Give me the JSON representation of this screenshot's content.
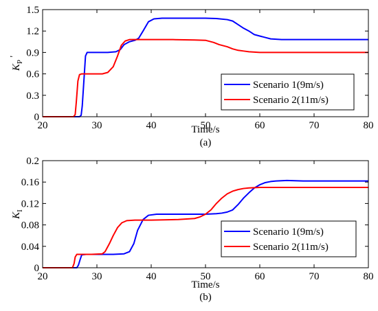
{
  "chart_data": [
    {
      "type": "line",
      "xlabel": "Time/s",
      "ylabel": "K_P'",
      "ylabel_main": "K",
      "ylabel_sub": "P",
      "ylabel_prime": "'",
      "caption": "(a)",
      "xlim": [
        20,
        80
      ],
      "ylim": [
        0,
        1.5
      ],
      "xticks": [
        "20",
        "30",
        "40",
        "50",
        "60",
        "70",
        "80"
      ],
      "yticks": [
        "0",
        "0.3",
        "0.6",
        "0.9",
        "1.2",
        "1.5"
      ],
      "grid": false,
      "legend_position": "lower-right",
      "series": [
        {
          "name": "Scenario 1(9m/s)",
          "color": "#0000ff",
          "x": [
            20,
            26.8,
            27.1,
            27.3,
            27.6,
            27.9,
            28.2,
            30,
            32,
            33.5,
            34.3,
            35,
            36,
            37,
            37.7,
            38.5,
            39.5,
            40.5,
            42,
            45,
            48,
            50,
            52,
            54,
            55,
            56,
            57,
            58,
            59,
            60,
            61,
            62,
            64,
            66,
            68,
            70,
            75,
            80
          ],
          "y": [
            0,
            0,
            0.02,
            0.15,
            0.5,
            0.85,
            0.9,
            0.9,
            0.9,
            0.91,
            0.94,
            1.01,
            1.05,
            1.07,
            1.1,
            1.2,
            1.33,
            1.37,
            1.38,
            1.38,
            1.38,
            1.38,
            1.375,
            1.36,
            1.34,
            1.29,
            1.24,
            1.2,
            1.15,
            1.13,
            1.11,
            1.09,
            1.08,
            1.08,
            1.08,
            1.08,
            1.08,
            1.08
          ]
        },
        {
          "name": "Scenario 2(11m/s)",
          "color": "#ff0000",
          "x": [
            20,
            25.7,
            26.0,
            26.2,
            26.5,
            26.8,
            27.2,
            29,
            31,
            32,
            33,
            33.8,
            34.5,
            35.2,
            36,
            38,
            40,
            44,
            48,
            50,
            51.5,
            52.5,
            54,
            55,
            56,
            57,
            58,
            59,
            60,
            62,
            65,
            70,
            80
          ],
          "y": [
            0,
            0,
            0.03,
            0.2,
            0.5,
            0.59,
            0.6,
            0.6,
            0.6,
            0.62,
            0.7,
            0.85,
            1.0,
            1.06,
            1.08,
            1.08,
            1.08,
            1.08,
            1.075,
            1.07,
            1.04,
            1.01,
            0.98,
            0.95,
            0.93,
            0.92,
            0.91,
            0.905,
            0.9,
            0.9,
            0.9,
            0.9,
            0.9
          ]
        }
      ]
    },
    {
      "type": "line",
      "xlabel": "Time/s",
      "ylabel": "K_I",
      "ylabel_main": "K",
      "ylabel_sub": "I",
      "caption": "(b)",
      "xlim": [
        20,
        80
      ],
      "ylim": [
        0,
        0.2
      ],
      "xticks": [
        "20",
        "30",
        "40",
        "50",
        "60",
        "70",
        "80"
      ],
      "yticks": [
        "0",
        "0.04",
        "0.08",
        "0.12",
        "0.16",
        "0.2"
      ],
      "grid": false,
      "legend_position": "lower-right",
      "series": [
        {
          "name": "Scenario 1(9m/s)",
          "color": "#0000ff",
          "x": [
            20,
            26.3,
            26.6,
            26.9,
            27.2,
            28,
            30,
            33,
            35,
            36,
            36.8,
            37.5,
            38.5,
            39.5,
            41,
            45,
            48,
            50,
            52,
            53,
            54,
            55,
            56,
            57,
            58,
            59,
            60,
            61,
            62,
            63,
            65,
            68,
            70,
            75,
            80
          ],
          "y": [
            0,
            0,
            0.005,
            0.015,
            0.024,
            0.025,
            0.025,
            0.025,
            0.026,
            0.03,
            0.045,
            0.07,
            0.09,
            0.098,
            0.1,
            0.1,
            0.1,
            0.1,
            0.101,
            0.102,
            0.104,
            0.108,
            0.118,
            0.13,
            0.14,
            0.149,
            0.155,
            0.159,
            0.161,
            0.162,
            0.163,
            0.162,
            0.162,
            0.162,
            0.162
          ]
        },
        {
          "name": "Scenario 2(11m/s)",
          "color": "#ff0000",
          "x": [
            20,
            25.5,
            25.8,
            26.0,
            26.3,
            27,
            29,
            31,
            31.5,
            32.3,
            33,
            33.8,
            34.6,
            35.5,
            37,
            40,
            45,
            48,
            49,
            50,
            51,
            52,
            53,
            54,
            55,
            56,
            57,
            58,
            60,
            62,
            65,
            70,
            80
          ],
          "y": [
            0,
            0,
            0.008,
            0.02,
            0.025,
            0.025,
            0.025,
            0.026,
            0.03,
            0.045,
            0.06,
            0.075,
            0.084,
            0.088,
            0.089,
            0.089,
            0.09,
            0.092,
            0.095,
            0.1,
            0.108,
            0.12,
            0.13,
            0.138,
            0.143,
            0.146,
            0.148,
            0.149,
            0.15,
            0.15,
            0.15,
            0.15,
            0.15
          ]
        }
      ]
    }
  ]
}
